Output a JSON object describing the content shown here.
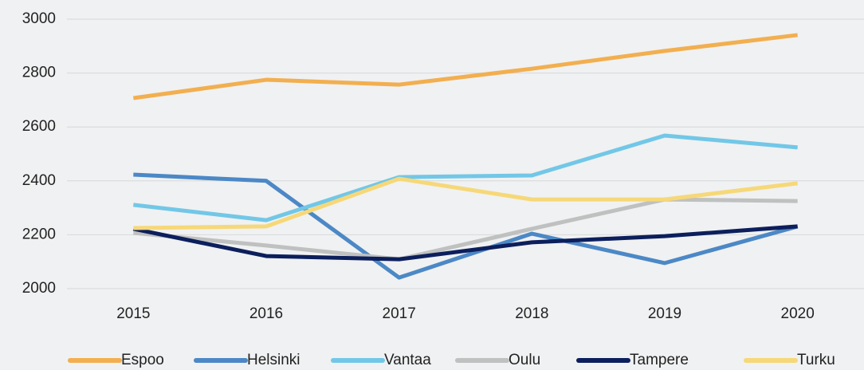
{
  "chart_data": {
    "type": "line",
    "categories": [
      "2015",
      "2016",
      "2017",
      "2018",
      "2019",
      "2020"
    ],
    "series": [
      {
        "name": "Espoo",
        "color": "#f2af50",
        "values": [
          2707,
          2775,
          2757,
          2816,
          2882,
          2941
        ]
      },
      {
        "name": "Helsinki",
        "color": "#4c88c6",
        "values": [
          2423,
          2400,
          2041,
          2204,
          2095,
          2231
        ]
      },
      {
        "name": "Vantaa",
        "color": "#72c7e7",
        "values": [
          2311,
          2254,
          2414,
          2420,
          2568,
          2524
        ]
      },
      {
        "name": "Oulu",
        "color": "#bfc0c0",
        "values": [
          2207,
          2160,
          2109,
          2222,
          2331,
          2325
        ]
      },
      {
        "name": "Tampere",
        "color": "#0c1f5c",
        "values": [
          2222,
          2121,
          2109,
          2172,
          2195,
          2231
        ]
      },
      {
        "name": "Turku",
        "color": "#f6d878",
        "values": [
          2225,
          2231,
          2408,
          2331,
          2331,
          2391
        ]
      }
    ],
    "ylim": [
      2000,
      3000
    ],
    "yticks": [
      2000,
      2200,
      2400,
      2600,
      2800,
      3000
    ],
    "grid": true,
    "legend": "bottom"
  }
}
